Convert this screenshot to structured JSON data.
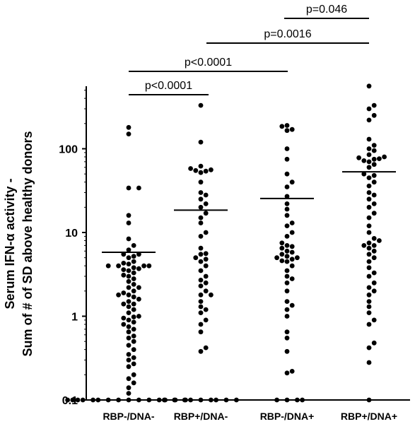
{
  "chart_data": {
    "type": "scatter",
    "title": "",
    "xlabel": "",
    "ylabel_lines": [
      "Serum IFN-α activity -",
      "Sum of # of SD above healthy donors"
    ],
    "yscale": "log",
    "ylim": [
      0.1,
      700
    ],
    "yticks": [
      0.1,
      1,
      10,
      100
    ],
    "ytick_labels": [
      "0.1",
      "1",
      "10",
      "100"
    ],
    "grid": false,
    "legend": "none",
    "marker_color": "#000000",
    "categories": [
      "RBP-/DNA-",
      "RBP+/DNA-",
      "RBP-/DNA+",
      "RBP+/DNA+"
    ],
    "means": [
      5.8,
      18.5,
      25.5,
      53
    ],
    "groups": [
      {
        "category": "RBP-/DNA-",
        "values": [
          180,
          150,
          34,
          34,
          16,
          13,
          8.4,
          7,
          6.2,
          5.5,
          5.5,
          5.2,
          5,
          4.5,
          4.3,
          4.2,
          4,
          4,
          4,
          4,
          3.8,
          3.7,
          3.6,
          3.5,
          3.3,
          3.1,
          3,
          2.8,
          2.6,
          2.4,
          2.2,
          2.2,
          2,
          1.9,
          1.8,
          1.8,
          1.7,
          1.6,
          1.5,
          1.4,
          1.4,
          1.3,
          1.2,
          1.1,
          1,
          0.98,
          0.95,
          0.9,
          0.85,
          0.8,
          0.75,
          0.7,
          0.65,
          0.58,
          0.55,
          0.5,
          0.45,
          0.4,
          0.35,
          0.32,
          0.3,
          0.27,
          0.25,
          0.2,
          0.18,
          0.16,
          0.14,
          0.12,
          0.1,
          0.1,
          0.1,
          0.1,
          0.1,
          0.1,
          0.1,
          0.1,
          0.1,
          0.1,
          0.1,
          0.1,
          0.1,
          0.1,
          0.1
        ]
      },
      {
        "category": "RBP+/DNA-",
        "values": [
          330,
          120,
          62,
          58,
          56,
          55,
          54,
          52,
          40,
          30,
          28,
          25,
          22,
          20,
          17,
          15,
          13,
          10,
          9,
          6.5,
          5.6,
          5.5,
          5,
          4.8,
          4.5,
          4,
          3.5,
          3,
          2.7,
          2.5,
          2.3,
          2,
          1.8,
          1.8,
          1.5,
          1.3,
          1.2,
          1.1,
          0.9,
          0.8,
          0.65,
          0.42,
          0.38,
          0.1,
          0.1,
          0.1,
          0.1,
          0.1,
          0.1,
          0.1,
          0.1,
          0.1
        ]
      },
      {
        "category": "RBP-/DNA+",
        "values": [
          190,
          185,
          170,
          165,
          100,
          75,
          50,
          40,
          35,
          27,
          22,
          19,
          16,
          13,
          12,
          10,
          9,
          7.5,
          7,
          6.8,
          6.5,
          6,
          5.8,
          5.5,
          5.2,
          5,
          5,
          4.8,
          4.6,
          4.5,
          4,
          3.5,
          3,
          2.8,
          2.5,
          2,
          1.5,
          1.35,
          1.2,
          1,
          0.65,
          0.55,
          0.38,
          0.22,
          0.21,
          0.1,
          0.1,
          0.1,
          0.1
        ]
      },
      {
        "category": "RBP+/DNA+",
        "values": [
          560,
          330,
          300,
          250,
          220,
          130,
          110,
          100,
          95,
          85,
          80,
          78,
          76,
          75,
          72,
          70,
          65,
          60,
          50,
          48,
          45,
          40,
          36,
          30,
          28,
          25,
          22,
          20,
          17,
          15,
          12,
          10,
          8.5,
          8,
          7.5,
          7,
          7,
          6.5,
          6,
          5.5,
          5,
          4.5,
          3.8,
          3.3,
          3,
          2.5,
          2.2,
          2,
          1.8,
          1.5,
          1.3,
          1.1,
          0.9,
          0.8,
          0.48,
          0.42,
          0.28,
          0.1
        ]
      }
    ],
    "annotations": [
      {
        "from": "RBP-/DNA-",
        "to": "RBP+/DNA-",
        "label": "p<0.0001"
      },
      {
        "from": "RBP-/DNA-",
        "to": "RBP-/DNA+",
        "label": "p<0.0001"
      },
      {
        "from": "RBP+/DNA-",
        "to": "RBP+/DNA+",
        "label": "p=0.0016"
      },
      {
        "from": "RBP-/DNA+",
        "to": "RBP+/DNA+",
        "label": "p=0.046"
      }
    ]
  }
}
